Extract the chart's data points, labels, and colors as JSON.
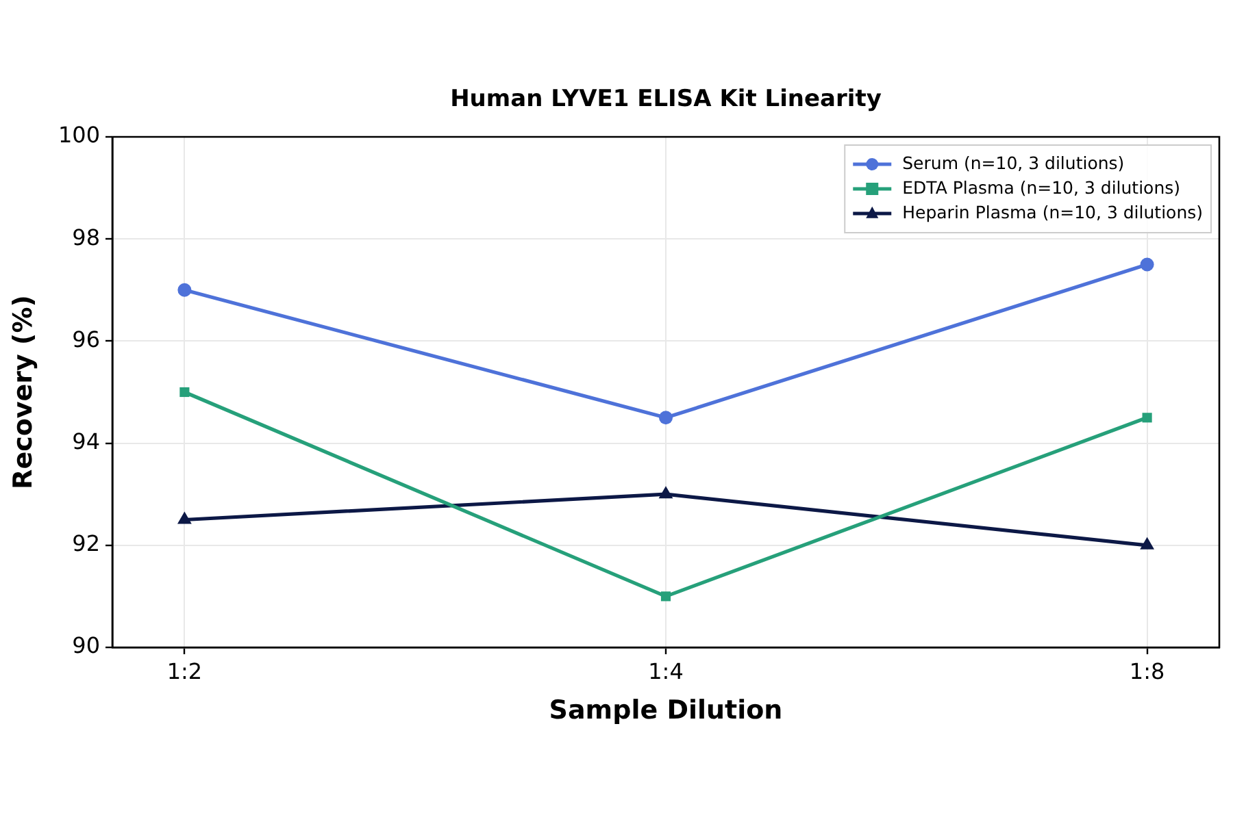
{
  "chart_data": {
    "type": "line",
    "title": "Human LYVE1 ELISA Kit Linearity",
    "xlabel": "Sample Dilution",
    "ylabel": "Recovery (%)",
    "categories": [
      "1:2",
      "1:4",
      "1:8"
    ],
    "series": [
      {
        "name": "Serum (n=10, 3 dilutions)",
        "color": "#4e72d9",
        "values": [
          97,
          94.5,
          97.5
        ],
        "marker": "circle"
      },
      {
        "name": "EDTA Plasma (n=10, 3 dilutions)",
        "color": "#26a07a",
        "values": [
          95,
          91,
          94.5
        ],
        "marker": "square"
      },
      {
        "name": "Heparin Plasma (n=10, 3 dilutions)",
        "color": "#0c1846",
        "values": [
          92.5,
          93,
          92
        ],
        "marker": "triangle"
      }
    ],
    "ylim": [
      90,
      100
    ],
    "yticks": [
      90,
      92,
      94,
      96,
      98,
      100
    ],
    "grid": true,
    "legend": "top right",
    "line_style": "solid"
  }
}
